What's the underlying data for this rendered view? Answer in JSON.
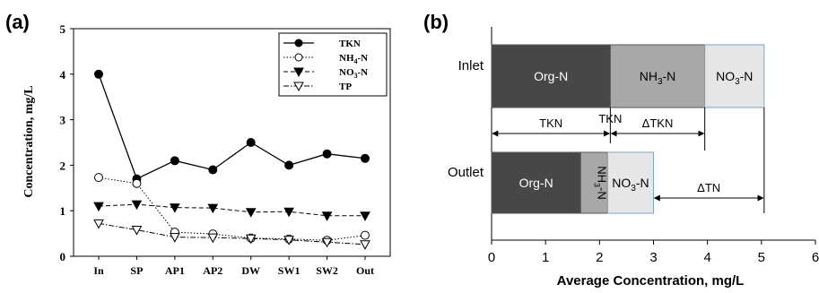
{
  "chart_data": [
    {
      "panel_label": "(a)",
      "type": "line",
      "categories": [
        "In",
        "SP",
        "AP1",
        "AP2",
        "DW",
        "SW1",
        "SW2",
        "Out"
      ],
      "ylabel": "Concentration, mg/L",
      "ylim": [
        0,
        5
      ],
      "yticks": [
        "0",
        "1",
        "2",
        "3",
        "4",
        "5"
      ],
      "grid": false,
      "legend_position": "top-right",
      "series": [
        {
          "name": "TKN",
          "values": [
            4.0,
            1.7,
            2.1,
            1.9,
            2.5,
            2.0,
            2.25,
            2.15
          ],
          "marker": "filled-circle",
          "line": "solid"
        },
        {
          "name": "NH4-N",
          "values": [
            1.73,
            1.6,
            0.53,
            0.49,
            0.4,
            0.38,
            0.35,
            0.46
          ],
          "marker": "open-circle",
          "line": "dotted"
        },
        {
          "name": "NO3-N",
          "values": [
            1.1,
            1.14,
            1.07,
            1.06,
            0.97,
            0.98,
            0.89,
            0.89
          ],
          "marker": "filled-triangle-down",
          "line": "dashed"
        },
        {
          "name": "TP",
          "values": [
            0.72,
            0.58,
            0.42,
            0.41,
            0.39,
            0.36,
            0.31,
            0.26
          ],
          "marker": "open-triangle-down",
          "line": "dash-dot"
        }
      ]
    },
    {
      "panel_label": "(b)",
      "type": "bar",
      "orientation": "horizontal",
      "stacked": true,
      "categories": [
        "Inlet",
        "Outlet"
      ],
      "xlabel": "Average Concentration, mg/L",
      "xlim": [
        0,
        6
      ],
      "xticks": [
        "0",
        "1",
        "2",
        "3",
        "4",
        "5",
        "6"
      ],
      "series": [
        {
          "name": "Org-N",
          "values": [
            2.2,
            1.65
          ],
          "color": "#474747",
          "label_color": "#ffffff"
        },
        {
          "name": "NH3-N",
          "values": [
            1.75,
            0.5
          ],
          "color": "#a8a8a8",
          "label_color": "#000000"
        },
        {
          "name": "NO3-N",
          "values": [
            1.1,
            0.85
          ],
          "color": "#e6e6e6",
          "label_color": "#000000"
        }
      ],
      "annotations": [
        {
          "label": "TKN",
          "from": 0,
          "to": 2.2,
          "row": "Inlet"
        },
        {
          "label": "TKN",
          "from": 2.2,
          "to": 2.2,
          "row": "Inlet"
        },
        {
          "label": "ΔTKN",
          "from": 2.2,
          "to": 3.95,
          "row": "Inlet"
        },
        {
          "label": "ΔTN",
          "from": 3.0,
          "to": 5.05,
          "row": "Outlet"
        }
      ]
    }
  ]
}
